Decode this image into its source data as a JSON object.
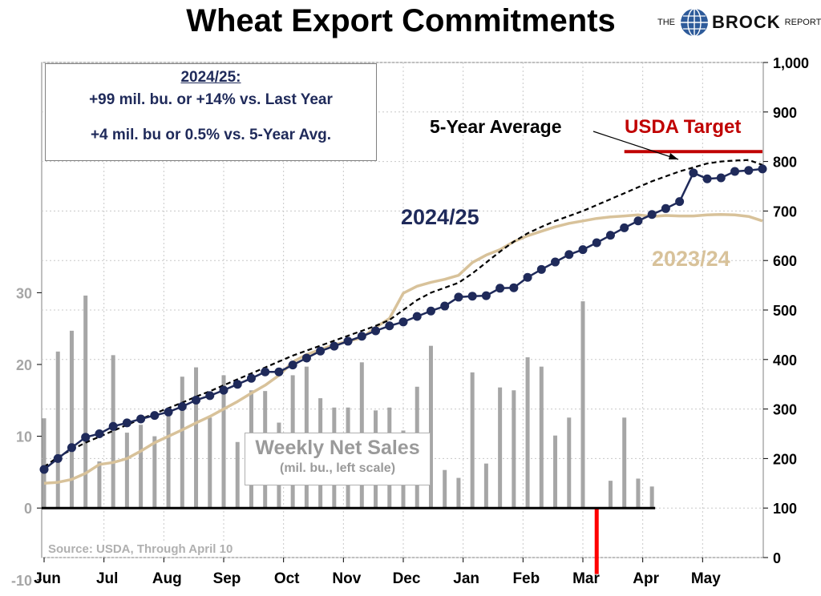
{
  "title": "Wheat Export Commitments",
  "logo": {
    "the": "THE",
    "brock": "BROCK",
    "report": "REPORT"
  },
  "infobox": {
    "year": "2024/25:",
    "line1": "+99 mil. bu. or +14% vs. Last Year",
    "line2": "+4 mil. bu or 0.5% vs. 5-Year Avg."
  },
  "weekly_box": {
    "title": "Weekly Net Sales",
    "subtitle": "(mil. bu., left scale)"
  },
  "source": "Source: USDA, Through April 10",
  "colors": {
    "current": "#1f2a5a",
    "last_year": "#d8c29a",
    "avg": "#000000",
    "target": "#c00000",
    "bars": "#a6a6a6",
    "negative_bar": "#ff0000",
    "grid": "#c8c8c8"
  },
  "chart_data": {
    "type": "line",
    "title": "Wheat Export Commitments",
    "x_axis": {
      "label": "",
      "months": [
        "Jun",
        "Jul",
        "Aug",
        "Sep",
        "Oct",
        "Nov",
        "Dec",
        "Jan",
        "Feb",
        "Mar",
        "Apr",
        "May"
      ],
      "week_range": [
        0,
        52
      ]
    },
    "right_axis": {
      "label": "",
      "range": [
        0,
        1000
      ],
      "ticks": [
        "0",
        "100",
        "200",
        "300",
        "400",
        "500",
        "600",
        "700",
        "800",
        "900",
        "1,000"
      ]
    },
    "left_axis": {
      "label": "",
      "range": [
        -10,
        30
      ],
      "ticks": [
        "-10",
        "0",
        "10",
        "20",
        "30"
      ]
    },
    "grid": true,
    "series": [
      {
        "name": "2024/25",
        "axis": "right",
        "markers": true,
        "points": [
          [
            0,
            178
          ],
          [
            1,
            200
          ],
          [
            2,
            222
          ],
          [
            3,
            243
          ],
          [
            4,
            250
          ],
          [
            5,
            265
          ],
          [
            6,
            272
          ],
          [
            7,
            280
          ],
          [
            8,
            287
          ],
          [
            9,
            294
          ],
          [
            10,
            305
          ],
          [
            11,
            318
          ],
          [
            12,
            327
          ],
          [
            13,
            338
          ],
          [
            14,
            350
          ],
          [
            15,
            362
          ],
          [
            16,
            375
          ],
          [
            17,
            375
          ],
          [
            18,
            389
          ],
          [
            19,
            403
          ],
          [
            20,
            417
          ],
          [
            21,
            427
          ],
          [
            22,
            437
          ],
          [
            23,
            447
          ],
          [
            24,
            458
          ],
          [
            25,
            468
          ],
          [
            26,
            476
          ],
          [
            27,
            487
          ],
          [
            28,
            498
          ],
          [
            29,
            508
          ],
          [
            30,
            526
          ],
          [
            31,
            528
          ],
          [
            32,
            529
          ],
          [
            33,
            544
          ],
          [
            34,
            545
          ],
          [
            35,
            566
          ],
          [
            36,
            582
          ],
          [
            37,
            597
          ],
          [
            38,
            612
          ],
          [
            39,
            622
          ],
          [
            40,
            636
          ],
          [
            41,
            651
          ],
          [
            42,
            666
          ],
          [
            43,
            680
          ],
          [
            44,
            693
          ],
          [
            45,
            705
          ],
          [
            46,
            719
          ],
          [
            47,
            777
          ],
          [
            48,
            765
          ],
          [
            49,
            767
          ],
          [
            50,
            780
          ],
          [
            51,
            782
          ],
          [
            52,
            785
          ]
        ]
      },
      {
        "name": "2023/24",
        "axis": "right",
        "markers": false,
        "points": [
          [
            0,
            150
          ],
          [
            1,
            152
          ],
          [
            2,
            158
          ],
          [
            3,
            170
          ],
          [
            4,
            188
          ],
          [
            5,
            192
          ],
          [
            6,
            200
          ],
          [
            7,
            215
          ],
          [
            8,
            232
          ],
          [
            9,
            245
          ],
          [
            10,
            258
          ],
          [
            11,
            272
          ],
          [
            12,
            285
          ],
          [
            13,
            300
          ],
          [
            14,
            315
          ],
          [
            15,
            332
          ],
          [
            16,
            348
          ],
          [
            17,
            368
          ],
          [
            18,
            395
          ],
          [
            19,
            410
          ],
          [
            20,
            420
          ],
          [
            21,
            430
          ],
          [
            22,
            437
          ],
          [
            23,
            444
          ],
          [
            24,
            465
          ],
          [
            25,
            483
          ],
          [
            26,
            534
          ],
          [
            27,
            548
          ],
          [
            28,
            556
          ],
          [
            29,
            562
          ],
          [
            30,
            570
          ],
          [
            31,
            596
          ],
          [
            32,
            611
          ],
          [
            33,
            622
          ],
          [
            34,
            638
          ],
          [
            35,
            650
          ],
          [
            36,
            659
          ],
          [
            37,
            668
          ],
          [
            38,
            675
          ],
          [
            39,
            680
          ],
          [
            40,
            685
          ],
          [
            41,
            688
          ],
          [
            42,
            690
          ],
          [
            43,
            692
          ],
          [
            44,
            689
          ],
          [
            45,
            691
          ],
          [
            46,
            690
          ],
          [
            47,
            690
          ],
          [
            48,
            692
          ],
          [
            49,
            693
          ],
          [
            50,
            692
          ],
          [
            51,
            689
          ],
          [
            52,
            680
          ]
        ]
      },
      {
        "name": "5-Year Average",
        "axis": "right",
        "dashed": true,
        "points": [
          [
            0,
            183
          ],
          [
            1,
            203
          ],
          [
            2,
            218
          ],
          [
            3,
            232
          ],
          [
            4,
            244
          ],
          [
            5,
            256
          ],
          [
            6,
            268
          ],
          [
            7,
            280
          ],
          [
            8,
            291
          ],
          [
            9,
            302
          ],
          [
            10,
            313
          ],
          [
            11,
            325
          ],
          [
            12,
            336
          ],
          [
            13,
            348
          ],
          [
            14,
            360
          ],
          [
            15,
            372
          ],
          [
            16,
            384
          ],
          [
            17,
            396
          ],
          [
            18,
            408
          ],
          [
            19,
            418
          ],
          [
            20,
            428
          ],
          [
            21,
            438
          ],
          [
            22,
            448
          ],
          [
            23,
            458
          ],
          [
            24,
            468
          ],
          [
            25,
            480
          ],
          [
            26,
            500
          ],
          [
            27,
            520
          ],
          [
            28,
            535
          ],
          [
            29,
            545
          ],
          [
            30,
            555
          ],
          [
            31,
            574
          ],
          [
            32,
            596
          ],
          [
            33,
            618
          ],
          [
            34,
            638
          ],
          [
            35,
            655
          ],
          [
            36,
            668
          ],
          [
            37,
            680
          ],
          [
            38,
            690
          ],
          [
            39,
            700
          ],
          [
            40,
            712
          ],
          [
            41,
            724
          ],
          [
            42,
            736
          ],
          [
            43,
            748
          ],
          [
            44,
            760
          ],
          [
            45,
            770
          ],
          [
            46,
            780
          ],
          [
            47,
            788
          ],
          [
            48,
            796
          ],
          [
            49,
            800
          ],
          [
            50,
            802
          ],
          [
            51,
            803
          ],
          [
            52,
            793
          ]
        ]
      },
      {
        "name": "USDA Target",
        "axis": "right",
        "points": [
          [
            42,
            820
          ],
          [
            52,
            820
          ]
        ]
      },
      {
        "name": "Weekly Net Sales",
        "type": "bar",
        "axis": "left",
        "points": [
          [
            0,
            12.5
          ],
          [
            1,
            21.8
          ],
          [
            2,
            24.7
          ],
          [
            3,
            29.6
          ],
          [
            4,
            6.5
          ],
          [
            5,
            21.3
          ],
          [
            6,
            10.5
          ],
          [
            7,
            11.6
          ],
          [
            8,
            10
          ],
          [
            9,
            13.2
          ],
          [
            10,
            18.3
          ],
          [
            11,
            19.6
          ],
          [
            12,
            12.6
          ],
          [
            13,
            18.5
          ],
          [
            14,
            9.2
          ],
          [
            15,
            16.4
          ],
          [
            16,
            16.3
          ],
          [
            17,
            11.9
          ],
          [
            18,
            18.5
          ],
          [
            19,
            19.7
          ],
          [
            20,
            15.3
          ],
          [
            21,
            14
          ],
          [
            22,
            14
          ],
          [
            23,
            20.3
          ],
          [
            24,
            13.6
          ],
          [
            25,
            14
          ],
          [
            26,
            10.8
          ],
          [
            27,
            16.9
          ],
          [
            28,
            22.6
          ],
          [
            29,
            5.3
          ],
          [
            30,
            4.2
          ],
          [
            31,
            18.9
          ],
          [
            32,
            6.2
          ],
          [
            33,
            16.8
          ],
          [
            34,
            16.4
          ],
          [
            35,
            21
          ],
          [
            36,
            19.7
          ],
          [
            37,
            10.1
          ],
          [
            38,
            12.6
          ],
          [
            39,
            28.8
          ],
          [
            40,
            -9.2
          ],
          [
            41,
            3.8
          ],
          [
            42,
            12.6
          ],
          [
            43,
            4.1
          ],
          [
            44,
            3
          ]
        ]
      }
    ]
  },
  "series_labels": {
    "current": "2024/25",
    "last_year": "2023/24",
    "avg": "5-Year Average",
    "target": "USDA Target"
  }
}
